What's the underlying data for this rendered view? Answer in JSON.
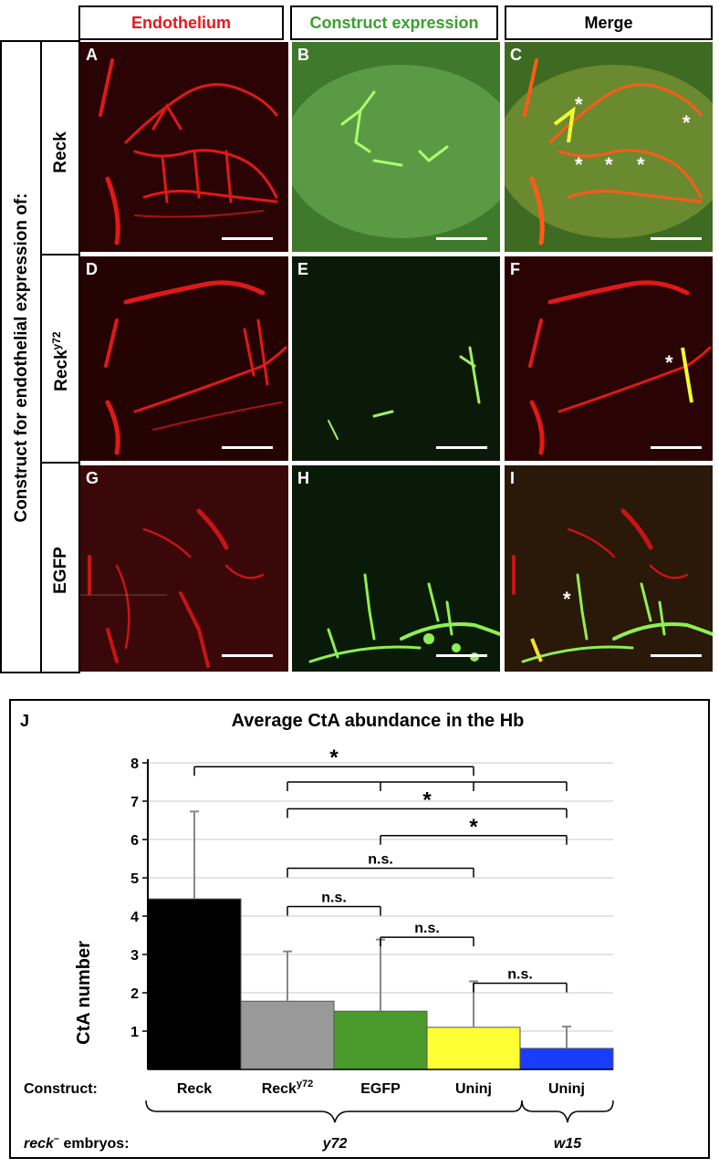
{
  "figure": {
    "side_label": "Construct for endothelial expression of:",
    "columns": [
      {
        "title": "Endothelium",
        "color": "#e8171c"
      },
      {
        "title": "Construct expression",
        "color": "#3aa12e"
      },
      {
        "title": "Merge",
        "color": "#000000"
      }
    ],
    "rows": [
      {
        "label": "Reck",
        "label_sup": ""
      },
      {
        "label": "Reck",
        "label_sup": "y72"
      },
      {
        "label": "EGFP",
        "label_sup": ""
      }
    ],
    "panels": [
      "A",
      "B",
      "C",
      "D",
      "E",
      "F",
      "G",
      "H",
      "I"
    ],
    "asterisk": "*"
  },
  "chart_data": {
    "type": "bar",
    "panel_label": "J",
    "title": "Average CtA abundance in the Hb",
    "ylabel": "CtA number",
    "ylim": [
      0,
      8
    ],
    "yticks": [
      "1",
      "2",
      "3",
      "4",
      "5",
      "6",
      "7",
      "8"
    ],
    "grid": true,
    "categories": [
      "Reck",
      "Recky72",
      "EGFP",
      "Uninj",
      "Uninj"
    ],
    "category_main": [
      "Reck",
      "Reck",
      "EGFP",
      "Uninj",
      "Uninj"
    ],
    "category_sup": [
      "",
      "y72",
      "",
      "",
      ""
    ],
    "values": [
      4.45,
      1.78,
      1.52,
      1.1,
      0.55
    ],
    "errors": [
      2.28,
      1.3,
      1.87,
      1.2,
      0.57
    ],
    "colors": [
      "#000000",
      "#999999",
      "#4a9a2c",
      "#ffff33",
      "#1a3cff"
    ],
    "comparisons": [
      {
        "label": "*",
        "level": 7.9
      },
      {
        "label": "",
        "level": 7.5
      },
      {
        "label": "*",
        "level": 6.8
      },
      {
        "label": "*",
        "level": 6.1
      },
      {
        "label": "n.s.",
        "level": 5.25
      },
      {
        "label": "n.s.",
        "level": 4.25
      },
      {
        "label": "n.s.",
        "level": 3.45
      },
      {
        "label": "n.s.",
        "level": 2.25
      }
    ],
    "construct_label": "Construct:",
    "embryos_label_italic": "reck",
    "embryos_label_sup": "–",
    "embryos_label_rest": " embryos:",
    "groups": [
      "y72",
      "w15"
    ]
  }
}
